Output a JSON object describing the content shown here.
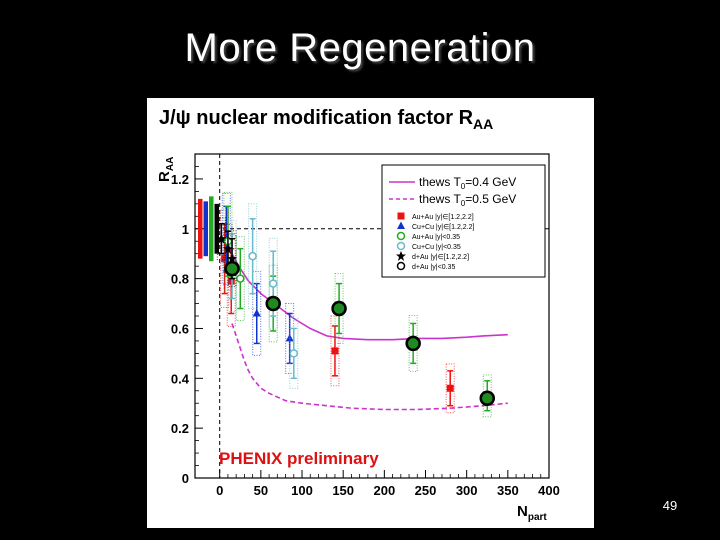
{
  "slide": {
    "title": "More Regeneration",
    "page_number": "49"
  },
  "chart_data": {
    "type": "scatter",
    "title_parts": {
      "main": "J/ψ  nuclear modification factor R",
      "sub": "AA"
    },
    "ylabel": {
      "main": "R",
      "sub": "AA"
    },
    "xlabel": {
      "main": "N",
      "sub": "part"
    },
    "xlim": [
      -30,
      400
    ],
    "ylim": [
      0,
      1.3
    ],
    "xticks": [
      0,
      50,
      100,
      150,
      200,
      250,
      300,
      350,
      400
    ],
    "yticks": [
      0,
      0.2,
      0.4,
      0.6,
      0.8,
      1,
      1.2
    ],
    "xtick_labels": [
      "0",
      "50",
      "100",
      "150",
      "200",
      "250",
      "300",
      "350",
      "400"
    ],
    "ytick_labels": [
      "0",
      "0.2",
      "0.4",
      "0.6",
      "0.8",
      "1",
      "1.2"
    ],
    "grid": false,
    "reference_line_y": 1,
    "reference_line_x": 0,
    "annotation": "PHENIX preliminary",
    "legend_placement": "top-right",
    "colors": {
      "theory": "#cc33cc",
      "au_fwd": "#ee1111",
      "cu_fwd": "#1133cc",
      "au_mid": "#22aa22",
      "cu_mid": "#66bbcc",
      "dau": "#000000",
      "overlay_fill": "#1f8a1f",
      "annotation": "#dd1111"
    },
    "theory_curves": [
      {
        "name": "thews T",
        "name_sub": "0",
        "name_suffix": "=0.4 GeV",
        "style": "solid",
        "x": [
          5,
          15,
          25,
          35,
          50,
          70,
          90,
          110,
          130,
          150,
          180,
          210,
          240,
          270,
          300,
          320,
          350
        ],
        "y": [
          0.98,
          0.9,
          0.84,
          0.79,
          0.74,
          0.69,
          0.64,
          0.6,
          0.57,
          0.56,
          0.555,
          0.555,
          0.56,
          0.56,
          0.565,
          0.57,
          0.575
        ]
      },
      {
        "name": "thews T",
        "name_sub": "0",
        "name_suffix": "=0.5 GeV",
        "style": "dashed",
        "x": [
          15,
          20,
          25,
          30,
          35,
          40,
          50,
          60,
          80,
          100,
          130,
          160,
          200,
          240,
          280,
          320,
          350
        ],
        "y": [
          0.62,
          0.57,
          0.52,
          0.47,
          0.43,
          0.4,
          0.36,
          0.34,
          0.31,
          0.3,
          0.29,
          0.28,
          0.275,
          0.275,
          0.28,
          0.29,
          0.3
        ]
      }
    ],
    "legend_markers": [
      {
        "name": "Au+Au |y|∈[1.2,2.2]",
        "series": "au_fwd",
        "marker": "square"
      },
      {
        "name": "Cu+Cu |y|∈[1.2,2.2]",
        "series": "cu_fwd",
        "marker": "triangle"
      },
      {
        "name": "Au+Au |y|<0.35",
        "series": "au_mid",
        "marker": "circle-open"
      },
      {
        "name": "Cu+Cu |y|<0.35",
        "series": "cu_mid",
        "marker": "circle-open"
      },
      {
        "name": "d+Au |y|∈[1.2,2.2]",
        "series": "dau",
        "marker": "star"
      },
      {
        "name": "d+Au |y|<0.35",
        "series": "dau",
        "marker": "circle-open"
      }
    ],
    "series": [
      {
        "key": "au_fwd",
        "marker": "square",
        "points": [
          {
            "x": 6,
            "y": 0.88,
            "err": 0.14
          },
          {
            "x": 14,
            "y": 0.79,
            "err": 0.13
          },
          {
            "x": 140,
            "y": 0.51,
            "err": 0.1
          },
          {
            "x": 280,
            "y": 0.36,
            "err": 0.07
          }
        ]
      },
      {
        "key": "cu_fwd",
        "marker": "triangle",
        "points": [
          {
            "x": 8,
            "y": 0.96,
            "err": 0.13
          },
          {
            "x": 45,
            "y": 0.66,
            "err": 0.12
          },
          {
            "x": 85,
            "y": 0.56,
            "err": 0.1
          }
        ]
      },
      {
        "key": "au_mid",
        "marker": "circle-open",
        "points": [
          {
            "x": 10,
            "y": 0.95,
            "err": 0.14
          },
          {
            "x": 25,
            "y": 0.8,
            "err": 0.12
          },
          {
            "x": 65,
            "y": 0.7,
            "err": 0.11
          },
          {
            "x": 145,
            "y": 0.68,
            "err": 0.1
          },
          {
            "x": 235,
            "y": 0.54,
            "err": 0.08
          },
          {
            "x": 325,
            "y": 0.33,
            "err": 0.06
          }
        ]
      },
      {
        "key": "cu_mid",
        "marker": "circle-open",
        "points": [
          {
            "x": 15,
            "y": 0.85,
            "err": 0.13
          },
          {
            "x": 40,
            "y": 0.89,
            "err": 0.15
          },
          {
            "x": 65,
            "y": 0.78,
            "err": 0.13
          },
          {
            "x": 90,
            "y": 0.5,
            "err": 0.1
          }
        ]
      },
      {
        "key": "dau",
        "marker": "star",
        "points": [
          {
            "x": 2,
            "y": 0.96,
            "err": 0.06
          },
          {
            "x": 10,
            "y": 0.92,
            "err": 0.07
          },
          {
            "x": 15,
            "y": 0.88,
            "err": 0.08
          }
        ]
      }
    ],
    "overlay_circles": [
      {
        "x": 15,
        "y": 0.84
      },
      {
        "x": 65,
        "y": 0.7
      },
      {
        "x": 145,
        "y": 0.68
      },
      {
        "x": 235,
        "y": 0.54
      },
      {
        "x": 325,
        "y": 0.32
      }
    ]
  }
}
